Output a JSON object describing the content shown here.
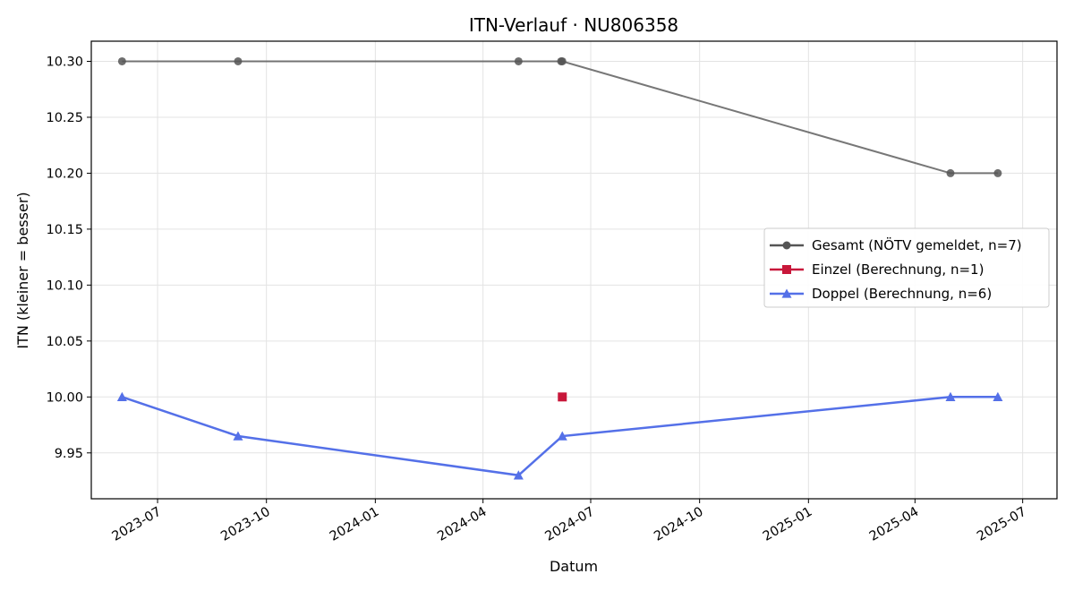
{
  "chart_data": {
    "type": "line",
    "title": "ITN-Verlauf · NU806358",
    "xlabel": "Datum",
    "ylabel": "ITN  (kleiner = besser)",
    "x_ticks": [
      "2023-07",
      "2023-10",
      "2024-01",
      "2024-04",
      "2024-07",
      "2024-10",
      "2025-01",
      "2025-04",
      "2025-07"
    ],
    "y_ticks": [
      "9.95",
      "10.00",
      "10.05",
      "10.10",
      "10.15",
      "10.20",
      "10.25",
      "10.30"
    ],
    "xlim": [
      "2023-05-06",
      "2025-07-30"
    ],
    "ylim": [
      9.909,
      10.318
    ],
    "grid": true,
    "legend_position": "center-right",
    "series": [
      {
        "name": "Gesamt (NÖTV gemeldet, n=7)",
        "marker": "circle",
        "color": "#555555",
        "points": [
          {
            "x": "2023-06-01",
            "y": 10.3
          },
          {
            "x": "2023-09-07",
            "y": 10.3
          },
          {
            "x": "2024-05-01",
            "y": 10.3
          },
          {
            "x": "2024-06-06",
            "y": 10.3
          },
          {
            "x": "2024-06-07",
            "y": 10.3
          },
          {
            "x": "2025-05-01",
            "y": 10.2
          },
          {
            "x": "2025-06-10",
            "y": 10.2
          }
        ]
      },
      {
        "name": "Einzel (Berechnung, n=1)",
        "marker": "square",
        "color": "#c8173a",
        "points": [
          {
            "x": "2024-06-07",
            "y": 10.0
          }
        ]
      },
      {
        "name": "Doppel (Berechnung, n=6)",
        "marker": "triangle",
        "color": "#5470e8",
        "points": [
          {
            "x": "2023-06-01",
            "y": 10.0
          },
          {
            "x": "2023-09-07",
            "y": 9.965
          },
          {
            "x": "2024-05-01",
            "y": 9.93
          },
          {
            "x": "2024-06-07",
            "y": 9.965
          },
          {
            "x": "2025-05-01",
            "y": 10.0
          },
          {
            "x": "2025-06-10",
            "y": 10.0
          }
        ]
      }
    ]
  }
}
